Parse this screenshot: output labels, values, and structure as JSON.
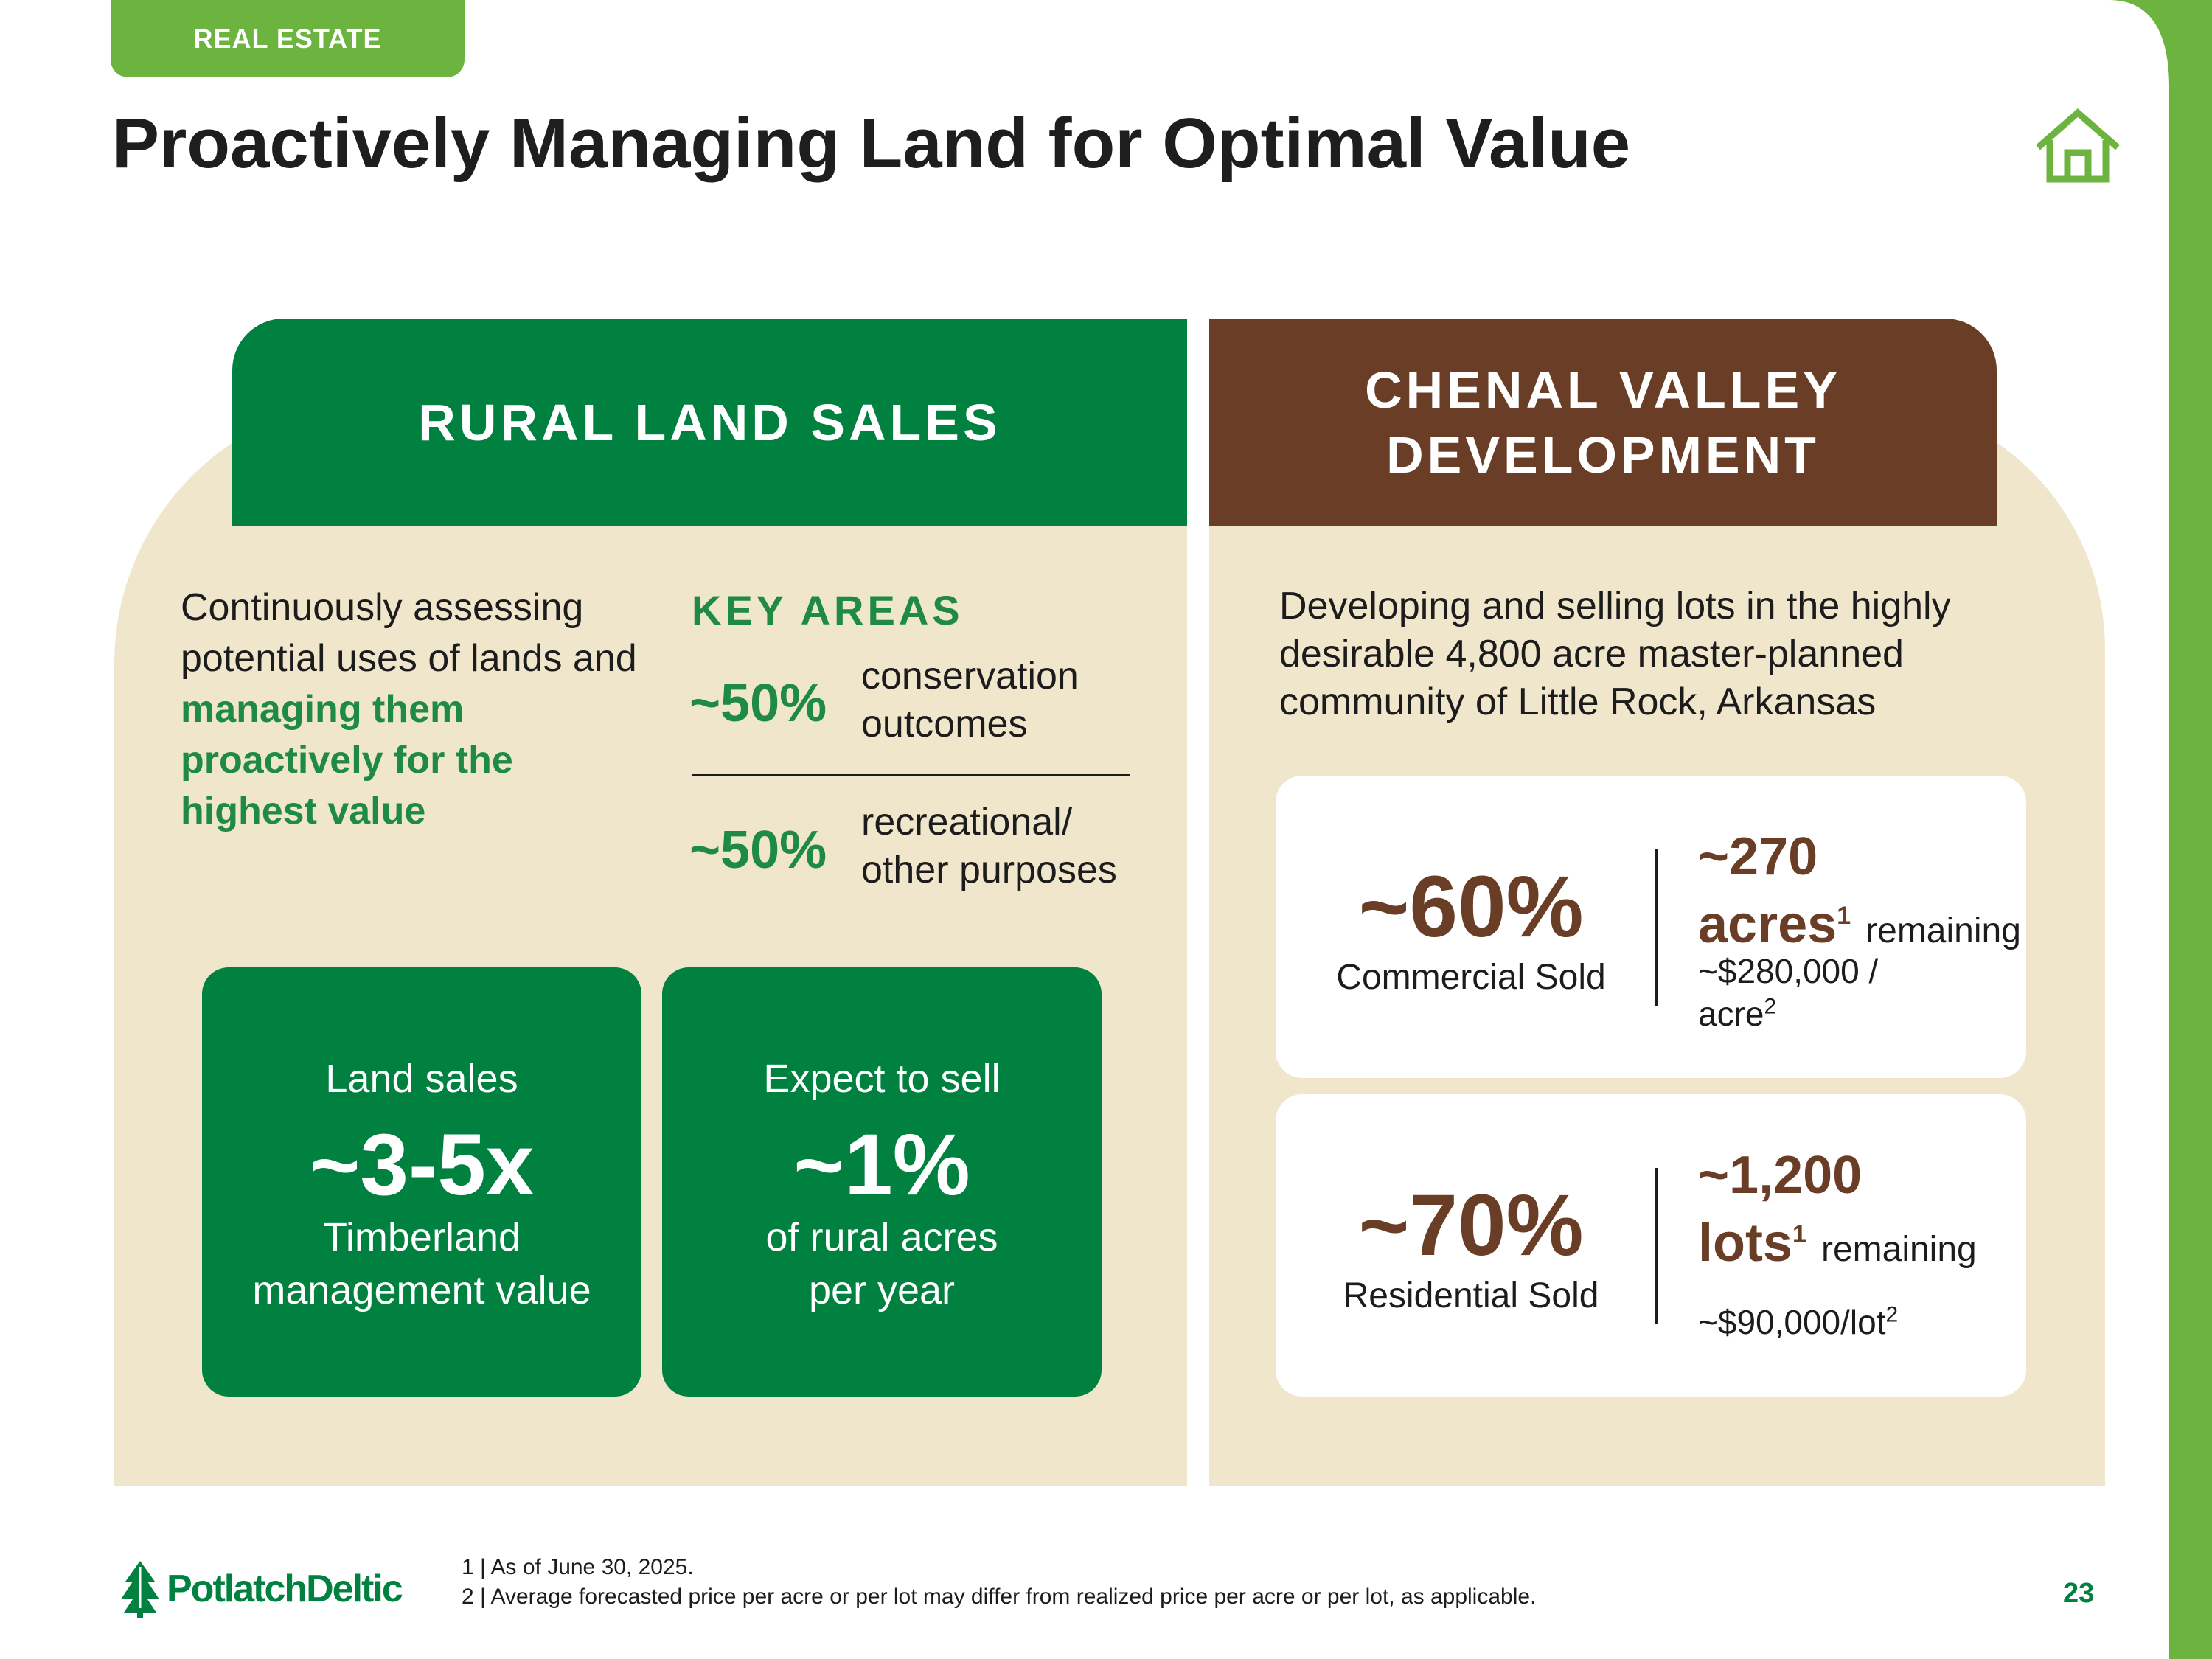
{
  "section_tag": "REAL ESTATE",
  "title": "Proactively Managing Land for Optimal Value",
  "rural": {
    "header": "RURAL LAND SALES",
    "intro_plain": "Continuously assessing potential uses of lands and ",
    "intro_highlight": "managing them proactively for the highest value",
    "key_areas_title": "KEY AREAS",
    "areas": [
      {
        "pct": "~50%",
        "line1": "conservation",
        "line2": "outcomes"
      },
      {
        "pct": "~50%",
        "line1": "recreational/",
        "line2": "other purposes"
      }
    ],
    "boxes": [
      {
        "line1": "Land sales",
        "big": "~3-5x",
        "line2": "Timberland",
        "line3": "management value"
      },
      {
        "line1": "Expect to sell",
        "big": "~1%",
        "line2": "of rural acres",
        "line3": "per year"
      }
    ]
  },
  "chenal": {
    "header_line1": "CHENAL VALLEY",
    "header_line2": "DEVELOPMENT",
    "intro": "Developing and selling lots in the highly desirable 4,800 acre master-planned community of Little Rock, Arkansas",
    "cards": [
      {
        "pct": "~60%",
        "label": "Commercial Sold",
        "amount": "~270",
        "unit": "acres",
        "unit_sup": "1",
        "remaining": "remaining",
        "price": "~$280,000 / acre",
        "price_sup": "2"
      },
      {
        "pct": "~70%",
        "label": "Residential Sold",
        "amount": "~1,200",
        "unit": "lots",
        "unit_sup": "1",
        "remaining": "remaining",
        "price": "~$90,000/lot",
        "price_sup": "2"
      }
    ]
  },
  "footer": {
    "logo_text": "PotlatchDeltic",
    "note1": "1 | As of June 30, 2025.",
    "note2": "2 | Average forecasted price per acre or per lot may differ from realized price per acre or per lot, as applicable.",
    "page_number": "23"
  },
  "colors": {
    "green": "#008140",
    "light_green": "#6db33f",
    "brown": "#6a3e26",
    "beige": "#f0e6cc"
  },
  "icons": [
    "home-icon",
    "tree-logo-icon"
  ]
}
